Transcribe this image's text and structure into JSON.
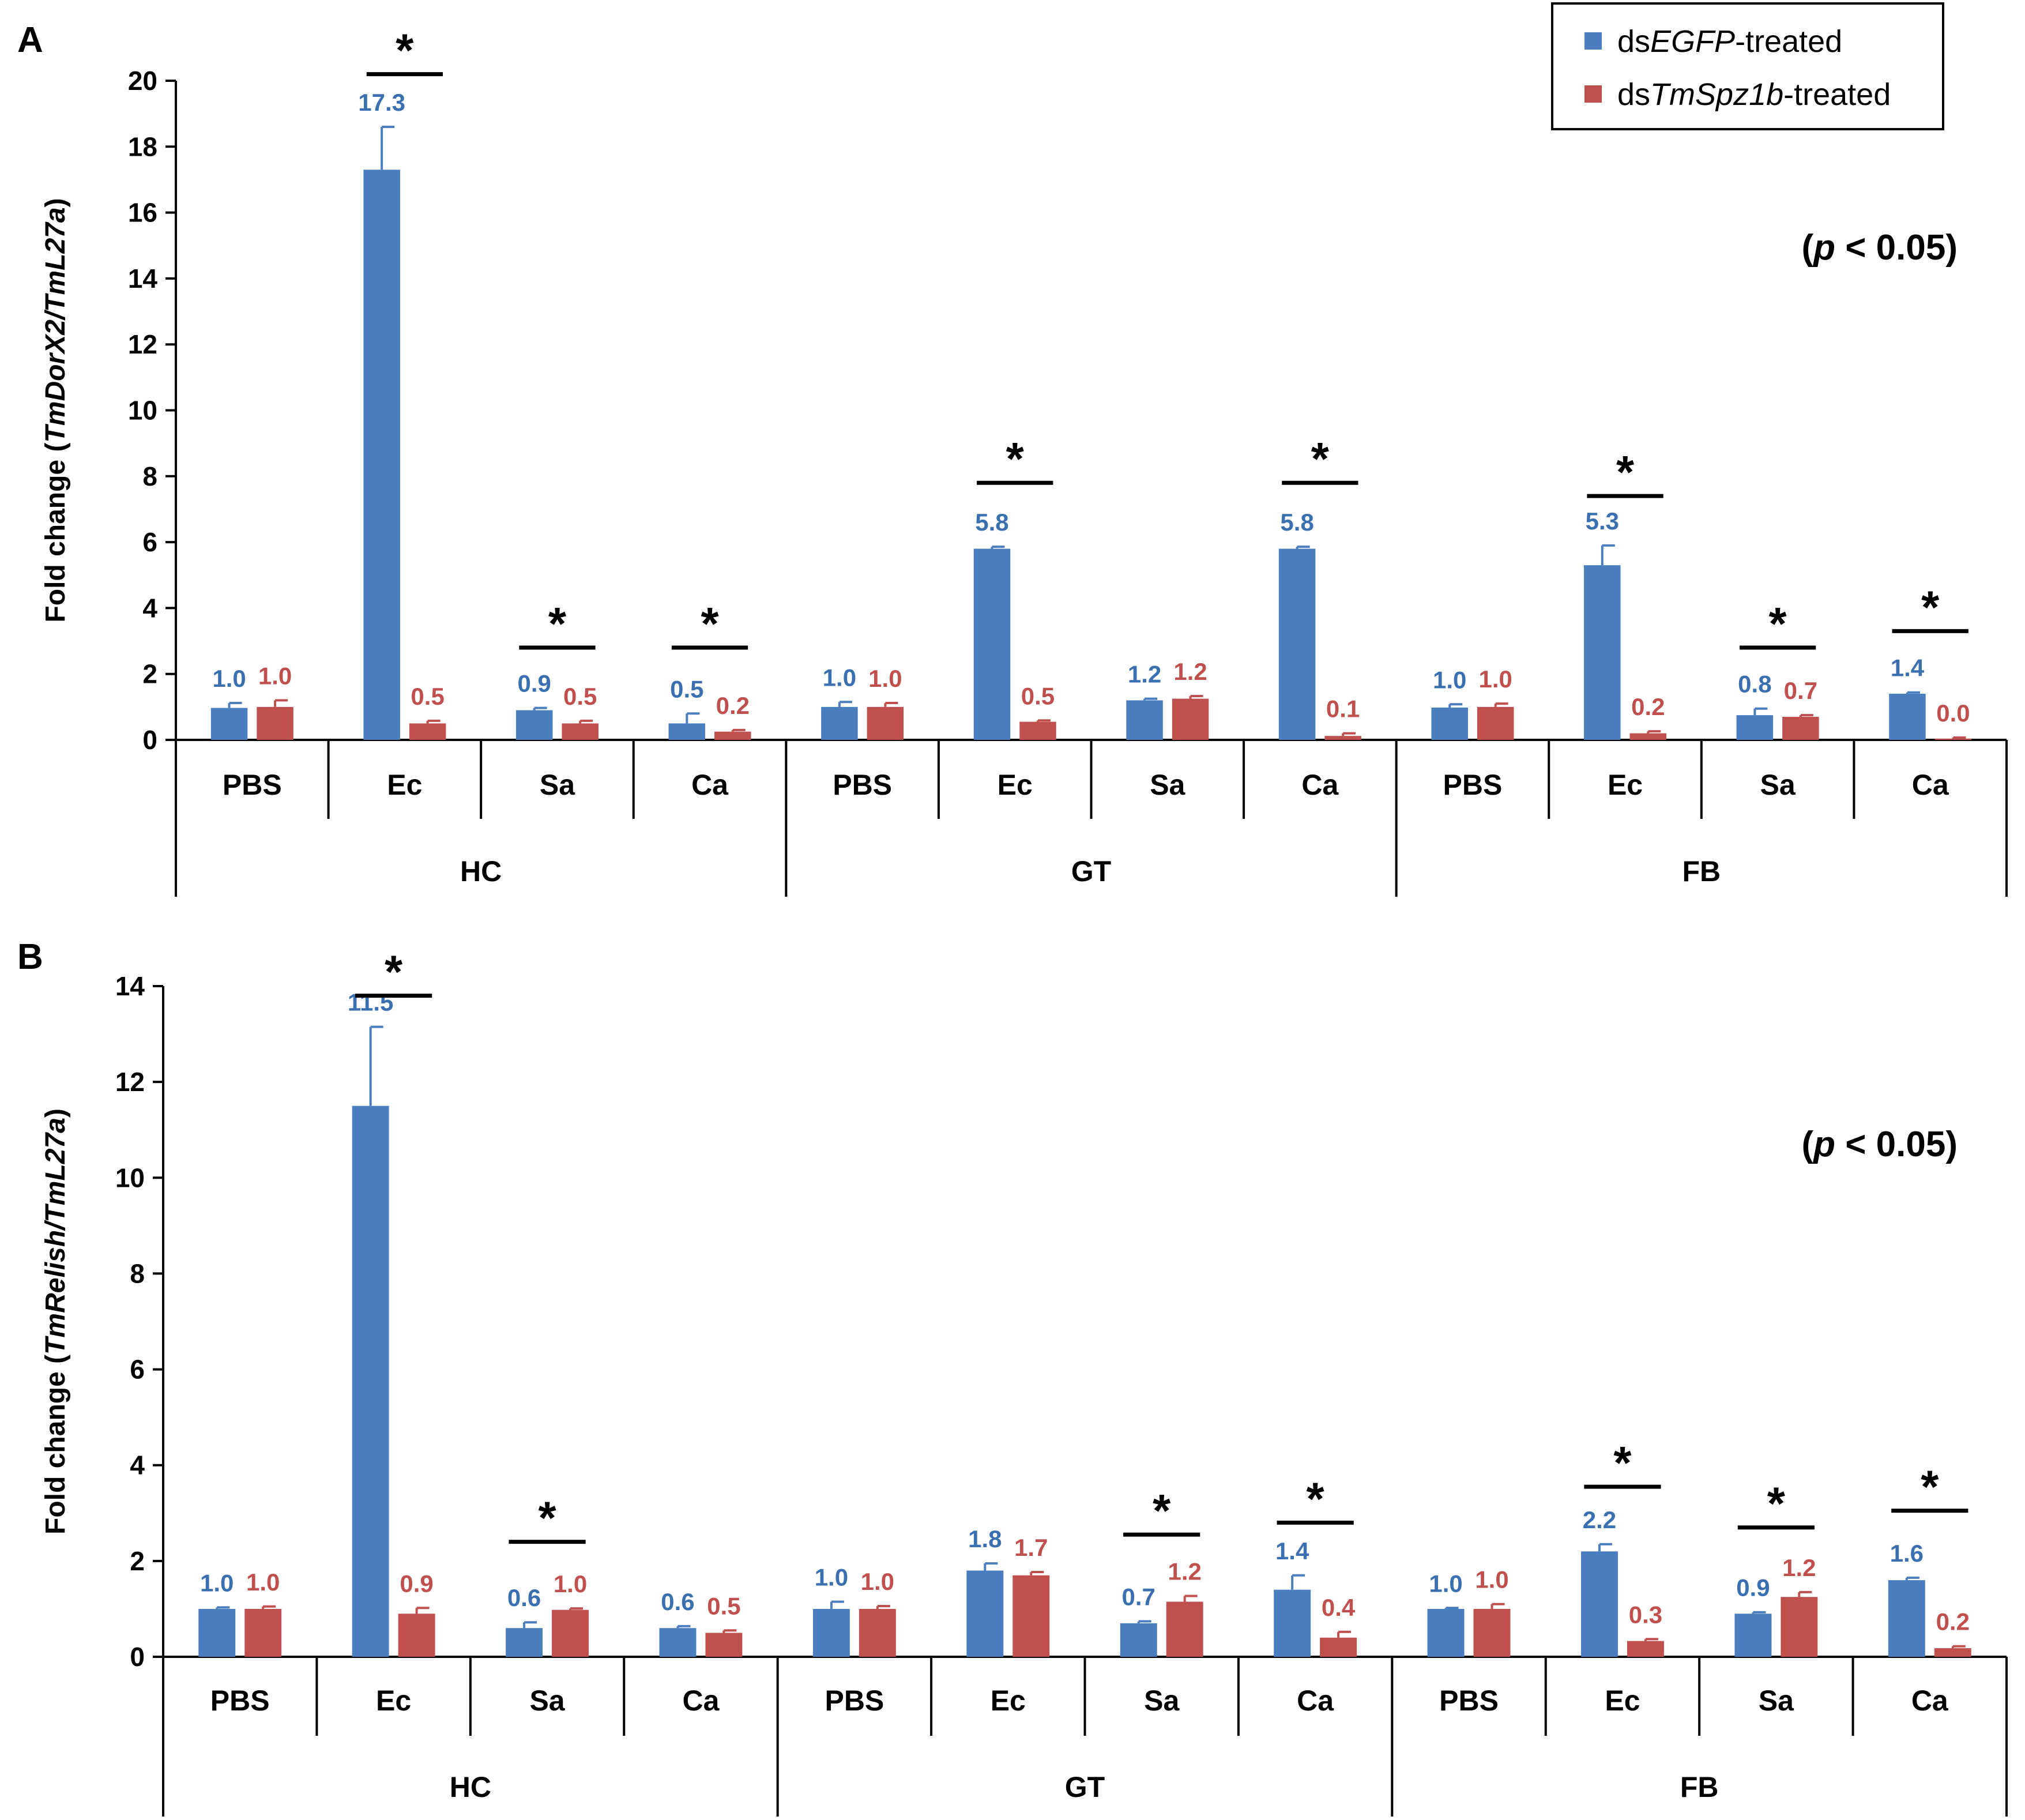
{
  "legend": {
    "items": [
      {
        "prefix": "ds",
        "italic": "EGFP",
        "suffix": "-treated",
        "color": "#4a7ebf"
      },
      {
        "prefix": "ds",
        "italic": "TmSpz1b",
        "suffix": "-treated",
        "color": "#c0504d"
      }
    ]
  },
  "colors": {
    "egfp": "#4a7ebf",
    "spz": "#c0504d",
    "egfp_label": "#3a6fb0",
    "spz_label": "#c0504d"
  },
  "chart_data": [
    {
      "panel": "A",
      "type": "bar",
      "ylabel": {
        "prefix": "Fold change (",
        "italic": "TmDorX2/TmL27a",
        "suffix": ")"
      },
      "ylim": [
        0,
        20
      ],
      "yticks": [
        "0",
        "2",
        "4",
        "6",
        "8",
        "10",
        "12",
        "14",
        "16",
        "18",
        "20"
      ],
      "annotation": {
        "open": "(",
        "italic": "p",
        "rest": " < 0.05)"
      },
      "groups": [
        "HC",
        "GT",
        "FB"
      ],
      "categories": [
        "PBS",
        "Ec",
        "Sa",
        "Ca",
        "PBS",
        "Ec",
        "Sa",
        "Ca",
        "PBS",
        "Ec",
        "Sa",
        "Ca"
      ],
      "series": [
        {
          "name": "dsEGFP-treated",
          "values": [
            0.97,
            17.3,
            0.9,
            0.5,
            1.0,
            5.8,
            1.2,
            5.8,
            0.98,
            5.3,
            0.75,
            1.4
          ],
          "errors": [
            0.15,
            1.3,
            0.07,
            0.3,
            0.15,
            0.06,
            0.05,
            0.06,
            0.1,
            0.6,
            0.2,
            0.04
          ],
          "labels": [
            "1.0",
            "17.3",
            "0.9",
            "0.5",
            "1.0",
            "5.8",
            "1.2",
            "5.8",
            "1.0",
            "5.3",
            "0.8",
            "1.4"
          ]
        },
        {
          "name": "dsTmSpz1b-treated",
          "values": [
            1.0,
            0.5,
            0.5,
            0.25,
            1.0,
            0.55,
            1.25,
            0.12,
            1.0,
            0.2,
            0.7,
            0.04
          ],
          "errors": [
            0.2,
            0.08,
            0.08,
            0.05,
            0.12,
            0.04,
            0.08,
            0.08,
            0.1,
            0.06,
            0.05,
            0.03
          ],
          "labels": [
            "1.0",
            "0.5",
            "0.5",
            "0.2",
            "1.0",
            "0.5",
            "1.2",
            "0.1",
            "1.0",
            "0.2",
            "0.7",
            "0.0"
          ]
        }
      ],
      "significance": [
        {
          "index": 1,
          "at": 20.2,
          "label": "*"
        },
        {
          "index": 2,
          "at": 2.8,
          "label": "*"
        },
        {
          "index": 3,
          "at": 2.8,
          "label": "*"
        },
        {
          "index": 5,
          "at": 7.8,
          "label": "*"
        },
        {
          "index": 7,
          "at": 7.8,
          "label": "*"
        },
        {
          "index": 9,
          "at": 7.4,
          "label": "*"
        },
        {
          "index": 10,
          "at": 2.8,
          "label": "*"
        },
        {
          "index": 11,
          "at": 3.3,
          "label": "*"
        }
      ]
    },
    {
      "panel": "B",
      "type": "bar",
      "ylabel": {
        "prefix": "Fold change (",
        "italic": "TmRelish/TmL27a",
        "suffix": ")"
      },
      "ylim": [
        0,
        14
      ],
      "yticks": [
        "0",
        "2",
        "4",
        "6",
        "8",
        "10",
        "12",
        "14"
      ],
      "annotation": {
        "open": "(",
        "italic": "p",
        "rest": " < 0.05)"
      },
      "groups": [
        "HC",
        "GT",
        "FB"
      ],
      "categories": [
        "PBS",
        "Ec",
        "Sa",
        "Ca",
        "PBS",
        "Ec",
        "Sa",
        "Ca",
        "PBS",
        "Ec",
        "Sa",
        "Ca"
      ],
      "series": [
        {
          "name": "dsEGFP-treated",
          "values": [
            1.0,
            11.5,
            0.6,
            0.6,
            1.0,
            1.8,
            0.7,
            1.4,
            1.0,
            2.2,
            0.9,
            1.6
          ],
          "errors": [
            0.03,
            1.65,
            0.12,
            0.04,
            0.15,
            0.15,
            0.04,
            0.3,
            0.02,
            0.15,
            0.03,
            0.05
          ],
          "labels": [
            "1.0",
            "11.5",
            "0.6",
            "0.6",
            "1.0",
            "1.8",
            "0.7",
            "1.4",
            "1.0",
            "2.2",
            "0.9",
            "1.6"
          ]
        },
        {
          "name": "dsTmSpz1b-treated",
          "values": [
            1.0,
            0.9,
            0.98,
            0.5,
            1.0,
            1.7,
            1.15,
            0.4,
            1.0,
            0.33,
            1.25,
            0.18
          ],
          "errors": [
            0.05,
            0.12,
            0.03,
            0.05,
            0.06,
            0.07,
            0.12,
            0.12,
            0.1,
            0.04,
            0.1,
            0.04
          ],
          "labels": [
            "1.0",
            "0.9",
            "1.0",
            "0.5",
            "1.0",
            "1.7",
            "1.2",
            "0.4",
            "1.0",
            "0.3",
            "1.2",
            "0.2"
          ]
        }
      ],
      "significance": [
        {
          "index": 1,
          "at": 13.8,
          "label": "*"
        },
        {
          "index": 2,
          "at": 2.4,
          "label": "*"
        },
        {
          "index": 6,
          "at": 2.55,
          "label": "*"
        },
        {
          "index": 7,
          "at": 2.8,
          "label": "*"
        },
        {
          "index": 9,
          "at": 3.55,
          "label": "*"
        },
        {
          "index": 10,
          "at": 2.7,
          "label": "*"
        },
        {
          "index": 11,
          "at": 3.05,
          "label": "*"
        }
      ]
    }
  ]
}
